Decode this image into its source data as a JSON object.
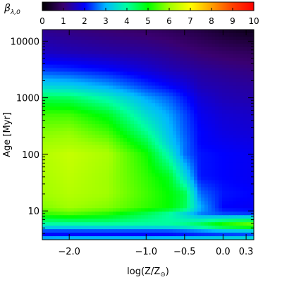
{
  "chart_data": {
    "type": "heatmap",
    "colorbar": {
      "label": "β",
      "label_sub": "λ,0",
      "range": [
        0,
        10
      ],
      "ticks": [
        "0",
        "1",
        "2",
        "3",
        "4",
        "5",
        "6",
        "7",
        "8",
        "9",
        "10"
      ],
      "placement": "top",
      "colormap": [
        "#000000",
        "#3a0070",
        "#0000ff",
        "#00b8ff",
        "#00ffa0",
        "#00ff00",
        "#a0ff00",
        "#ffff00",
        "#ffa000",
        "#ff4000",
        "#ff0000"
      ]
    },
    "xlabel_main": "log(Z/Z",
    "xlabel_sun": "⊙",
    "xlabel_close": ")",
    "xlim": [
      -2.35,
      0.4
    ],
    "x_ticks": [
      {
        "value": -2.0,
        "label": "−2.0"
      },
      {
        "value": -1.0,
        "label": "−1.0"
      },
      {
        "value": -0.5,
        "label": "−0.5"
      },
      {
        "value": 0.0,
        "label": "0.0"
      },
      {
        "value": 0.3,
        "label": "0.3"
      }
    ],
    "ylabel": "Age [Myr]",
    "yscale": "log",
    "ylim": [
      3.1,
      16000
    ],
    "y_ticks": [
      {
        "value": 10,
        "label": "10"
      },
      {
        "value": 100,
        "label": "100"
      },
      {
        "value": 1000,
        "label": "1000"
      },
      {
        "value": 10000,
        "label": "10000"
      }
    ],
    "grid": false,
    "z_samples": {
      "log_z": [
        -2.35,
        -2.0,
        -1.5,
        -1.0,
        -0.7,
        -0.5,
        -0.3,
        0.0,
        0.4
      ],
      "log_age": [
        0.5,
        0.6,
        0.75,
        0.95,
        1.05,
        1.3,
        1.6,
        2.0,
        2.2,
        2.4,
        2.7,
        3.0,
        3.2,
        3.5,
        3.8,
        4.21
      ],
      "values": [
        [
          3.2,
          3.3,
          3.3,
          3.3,
          3.4,
          3.4,
          3.5,
          3.6,
          3.7
        ],
        [
          1.8,
          1.8,
          1.8,
          1.8,
          1.8,
          1.9,
          2.0,
          2.1,
          2.2
        ],
        [
          3.8,
          3.8,
          3.9,
          3.9,
          4.0,
          4.2,
          4.6,
          5.4,
          6.0
        ],
        [
          5.3,
          5.5,
          5.2,
          4.5,
          4.0,
          3.4,
          2.7,
          2.4,
          2.3
        ],
        [
          5.8,
          6.0,
          5.8,
          5.3,
          5.0,
          4.5,
          3.0,
          2.0,
          1.9
        ],
        [
          6.0,
          6.2,
          6.0,
          5.4,
          5.0,
          4.6,
          2.6,
          2.1,
          2.0
        ],
        [
          6.1,
          6.3,
          6.0,
          5.3,
          4.8,
          3.5,
          2.1,
          2.0,
          1.9
        ],
        [
          6.2,
          6.4,
          6.1,
          5.1,
          3.8,
          2.6,
          2.1,
          2.0,
          1.9
        ],
        [
          6.0,
          6.1,
          5.8,
          4.6,
          3.3,
          2.6,
          2.0,
          1.9,
          1.8
        ],
        [
          5.8,
          5.9,
          5.4,
          4.1,
          3.1,
          2.5,
          2.0,
          1.8,
          1.7
        ],
        [
          5.4,
          5.4,
          4.8,
          3.5,
          2.9,
          2.4,
          1.9,
          1.7,
          1.6
        ],
        [
          4.5,
          4.4,
          3.8,
          2.9,
          2.5,
          2.1,
          1.7,
          1.5,
          1.4
        ],
        [
          3.4,
          3.3,
          2.9,
          2.3,
          2.0,
          1.8,
          1.5,
          1.4,
          1.3
        ],
        [
          2.3,
          2.2,
          2.0,
          1.7,
          1.5,
          1.4,
          1.3,
          1.2,
          1.1
        ],
        [
          1.6,
          1.5,
          1.4,
          1.3,
          1.2,
          1.1,
          1.0,
          0.9,
          0.8
        ],
        [
          1.2,
          1.1,
          1.0,
          0.9,
          0.8,
          0.7,
          0.6,
          0.4,
          0.2
        ]
      ]
    }
  }
}
